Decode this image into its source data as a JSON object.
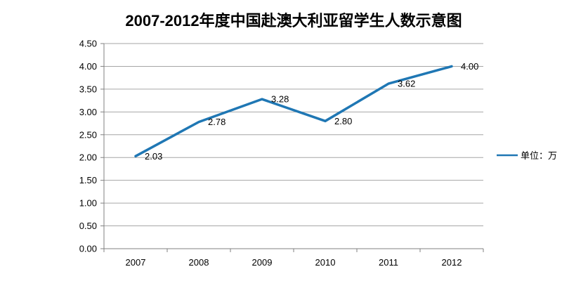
{
  "title": "2007-2012年度中国赴澳大利亚留学生人数示意图",
  "legend": {
    "label": "单位：万",
    "position": "right"
  },
  "colors": {
    "line": "#1F77B4",
    "grid": "#A6A6A6",
    "axis": "#808080",
    "text": "#000000",
    "background": "#FFFFFF"
  },
  "chart_data": {
    "type": "line",
    "title": "2007-2012年度中国赴澳大利亚留学生人数示意图",
    "categories": [
      "2007",
      "2008",
      "2009",
      "2010",
      "2011",
      "2012"
    ],
    "series": [
      {
        "name": "单位：万",
        "values": [
          2.03,
          2.78,
          3.28,
          2.8,
          3.62,
          4.0
        ],
        "color": "#1F77B4"
      }
    ],
    "data_labels": [
      "2.03",
      "2.78",
      "3.28",
      "2.80",
      "3.62",
      "4.00"
    ],
    "xlabel": "",
    "ylabel": "",
    "ylim": [
      0,
      4.5
    ],
    "ytick_step": 0.5,
    "ytick_labels": [
      "0.00",
      "0.50",
      "1.00",
      "1.50",
      "2.00",
      "2.50",
      "3.00",
      "3.50",
      "4.00",
      "4.50"
    ],
    "grid": "horizontal",
    "markers": false,
    "legend_position": "right"
  }
}
